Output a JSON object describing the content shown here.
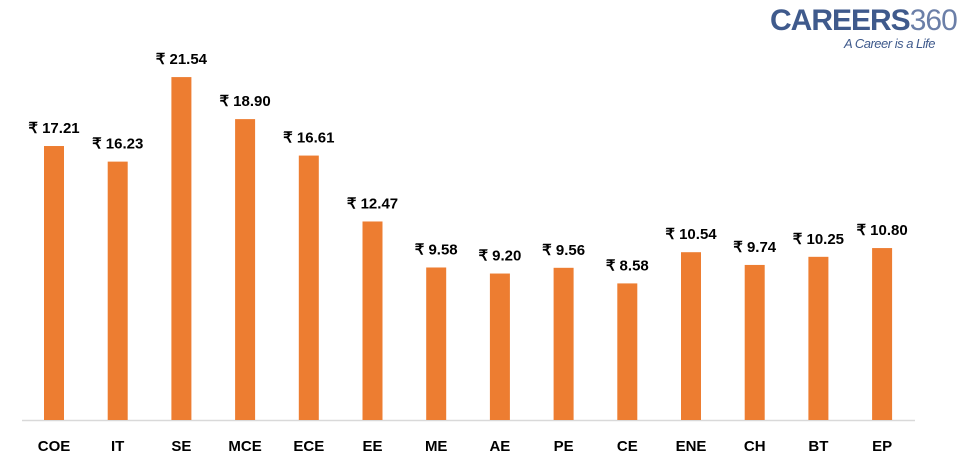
{
  "brand": {
    "name": "CAREERS",
    "number": "360",
    "tagline": "A Career is a Life"
  },
  "chart_data": {
    "type": "bar",
    "title": "",
    "xlabel": "",
    "ylabel": "",
    "categories": [
      "COE",
      "IT",
      "SE",
      "MCE",
      "ECE",
      "EE",
      "ME",
      "AE",
      "PE",
      "CE",
      "ENE",
      "CH",
      "BT",
      "EP"
    ],
    "values": [
      17.21,
      16.23,
      21.54,
      18.9,
      16.61,
      12.47,
      9.58,
      9.2,
      9.56,
      8.58,
      10.54,
      9.74,
      10.25,
      10.8
    ],
    "data_labels": [
      "₹ 17.21",
      "₹ 16.23",
      "₹ 21.54",
      "₹ 18.90",
      "₹ 16.61",
      "₹ 12.47",
      "₹ 9.58",
      "₹ 9.20",
      "₹ 9.56",
      "₹ 8.58",
      "₹ 10.54",
      "₹ 9.74",
      "₹ 10.25",
      "₹ 10.80"
    ],
    "ylim": [
      0,
      25
    ],
    "grid": false,
    "bar_color": "#ed7d31"
  }
}
